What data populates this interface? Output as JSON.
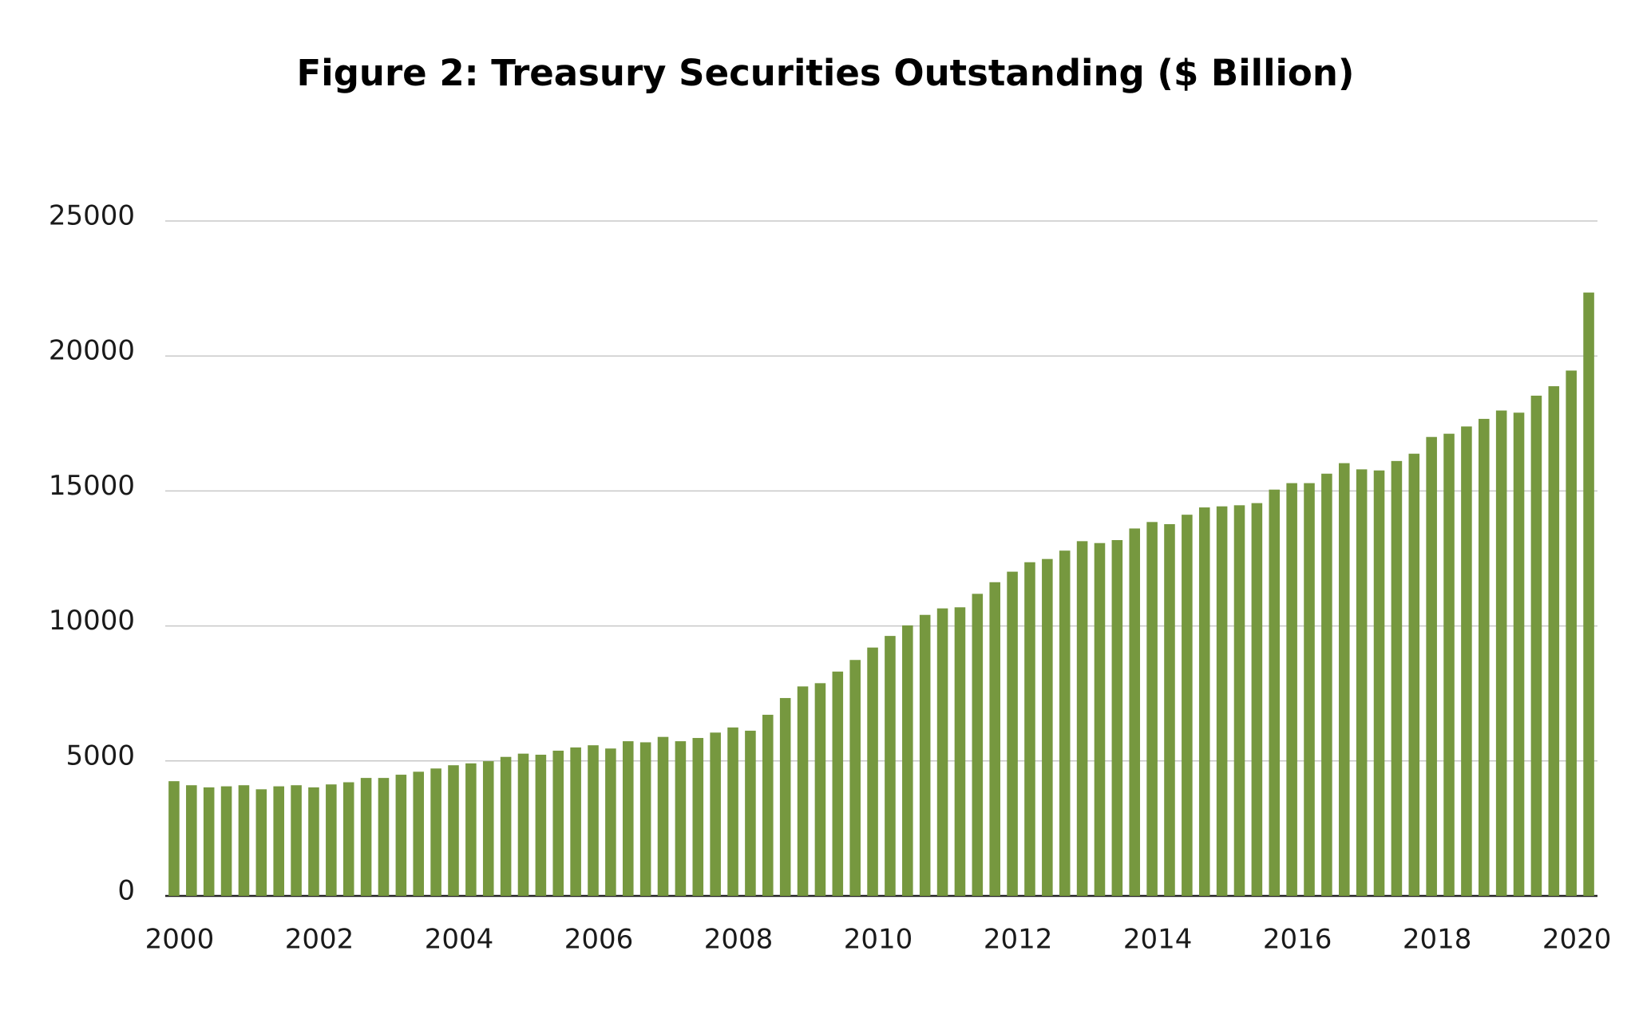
{
  "chart_data": {
    "type": "bar",
    "title": "Figure 2: Treasury Securities Outstanding ($ Billion)",
    "categories": [
      "2000",
      null,
      null,
      null,
      null,
      null,
      null,
      null,
      "2002",
      null,
      null,
      null,
      null,
      null,
      null,
      null,
      "2004",
      null,
      null,
      null,
      null,
      null,
      null,
      null,
      "2006",
      null,
      null,
      null,
      null,
      null,
      null,
      null,
      "2008",
      null,
      null,
      null,
      null,
      null,
      null,
      null,
      "2010",
      null,
      null,
      null,
      null,
      null,
      null,
      null,
      "2012",
      null,
      null,
      null,
      null,
      null,
      null,
      null,
      "2014",
      null,
      null,
      null,
      null,
      null,
      null,
      null,
      "2016",
      null,
      null,
      null,
      null,
      null,
      null,
      null,
      "2018",
      null,
      null,
      null,
      null,
      null,
      null,
      null,
      "2020",
      null
    ],
    "values": [
      4250,
      4100,
      4020,
      4060,
      4100,
      3950,
      4060,
      4100,
      4020,
      4130,
      4210,
      4370,
      4370,
      4490,
      4600,
      4720,
      4840,
      4910,
      4990,
      5150,
      5270,
      5230,
      5380,
      5500,
      5580,
      5460,
      5730,
      5690,
      5890,
      5730,
      5850,
      6050,
      6240,
      6120,
      6710,
      7330,
      7760,
      7880,
      8310,
      8740,
      9200,
      9630,
      10020,
      10410,
      10650,
      10690,
      11190,
      11620,
      12010,
      12360,
      12480,
      12790,
      13140,
      13070,
      13180,
      13610,
      13850,
      13770,
      14120,
      14390,
      14430,
      14470,
      14550,
      15050,
      15290,
      15290,
      15640,
      16030,
      15800,
      15760,
      16110,
      16380,
      17000,
      17120,
      17390,
      17670,
      17980,
      17900,
      18530,
      18880,
      19460,
      22350
    ],
    "color": "#76983f",
    "ylim": [
      0,
      25000
    ],
    "yticks": [
      0,
      5000,
      10000,
      15000,
      20000,
      25000
    ],
    "grid": true
  }
}
